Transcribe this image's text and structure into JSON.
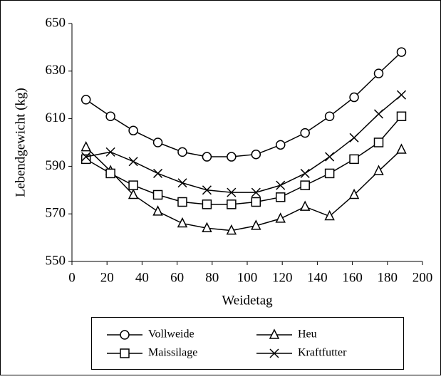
{
  "chart_data": {
    "type": "line",
    "x_label": "Weidetag",
    "y_label": "Lebendgewicht (kg)",
    "x": [
      8,
      22,
      35,
      49,
      63,
      77,
      91,
      105,
      119,
      133,
      147,
      161,
      175,
      188
    ],
    "series": [
      {
        "name": "Vollweide",
        "color": "#000000",
        "marker": "circle",
        "values": [
          618,
          611,
          605,
          600,
          596,
          594,
          594,
          595,
          599,
          604,
          611,
          619,
          629,
          638
        ]
      },
      {
        "name": "Heu",
        "color": "#000000",
        "marker": "triangle",
        "values": [
          598,
          588,
          578,
          571,
          566,
          564,
          563,
          565,
          568,
          573,
          569,
          578,
          588,
          597
        ]
      },
      {
        "name": "Maissilage",
        "color": "#000000",
        "marker": "square",
        "values": [
          593,
          587,
          582,
          578,
          575,
          574,
          574,
          575,
          577,
          582,
          587,
          593,
          600,
          611
        ]
      },
      {
        "name": "Kraftfutter",
        "color": "#000000",
        "marker": "cross",
        "values": [
          594,
          596,
          592,
          587,
          583,
          580,
          579,
          579,
          582,
          587,
          594,
          602,
          612,
          620
        ]
      }
    ],
    "xlim": [
      0,
      200
    ],
    "xticks": [
      0,
      20,
      40,
      60,
      80,
      100,
      120,
      140,
      160,
      180,
      200
    ],
    "ylim": [
      550,
      650
    ],
    "yticks": [
      550,
      570,
      590,
      610,
      630,
      650
    ],
    "grid": false,
    "legend": "bottom"
  }
}
